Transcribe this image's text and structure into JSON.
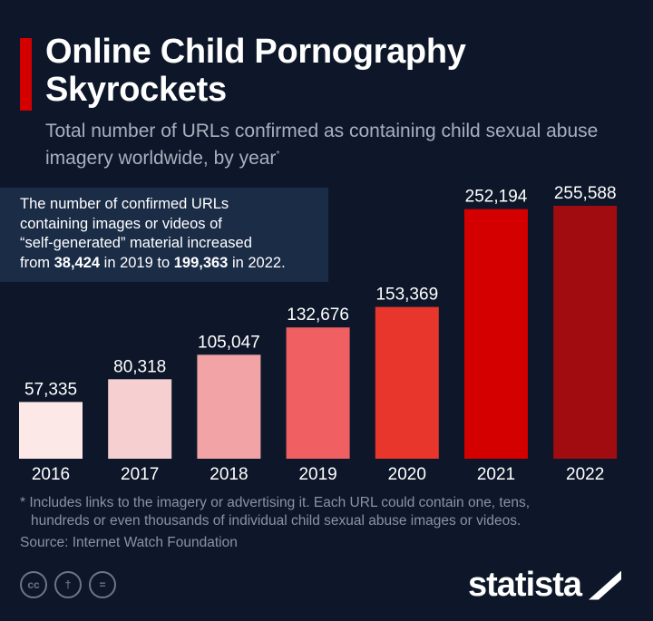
{
  "chart_data": {
    "type": "bar",
    "title": "Online Child Pornography Skyrockets",
    "subtitle": "Total number of URLs confirmed as containing child sexual abuse imagery worldwide, by year",
    "subtitle_marker": "*",
    "categories": [
      "2016",
      "2017",
      "2018",
      "2019",
      "2020",
      "2021",
      "2022"
    ],
    "values": [
      57335,
      80318,
      105047,
      132676,
      153369,
      252194,
      255588
    ],
    "value_labels": [
      "57,335",
      "80,318",
      "105,047",
      "132,676",
      "153,369",
      "252,194",
      "255,588"
    ],
    "colors": [
      "#fde8e8",
      "#f6cfd0",
      "#f2a3a6",
      "#f06062",
      "#e8362d",
      "#d40000",
      "#a00c10"
    ],
    "ylim": [
      0,
      255588
    ],
    "grid": false,
    "xlabel": "",
    "ylabel": ""
  },
  "annotation": {
    "line1": "The number of confirmed URLs",
    "line2": "containing images or videos of",
    "line3": "“self-generated” material increased",
    "pre": "from ",
    "v1": "38,424",
    "mid": " in 2019 to ",
    "v2": "199,363",
    "post": " in 2022."
  },
  "footnote": {
    "line1": "* Includes links to the imagery or advertising it. Each URL could contain one, tens,",
    "line2": "hundreds or even thousands of individual child sexual abuse images or videos.",
    "source": "Source: Internet Watch Foundation"
  },
  "license_icons": [
    "cc",
    "by",
    "nd"
  ],
  "license_labels": {
    "cc": "cc",
    "by": "†",
    "nd": "="
  },
  "brand": "statista"
}
